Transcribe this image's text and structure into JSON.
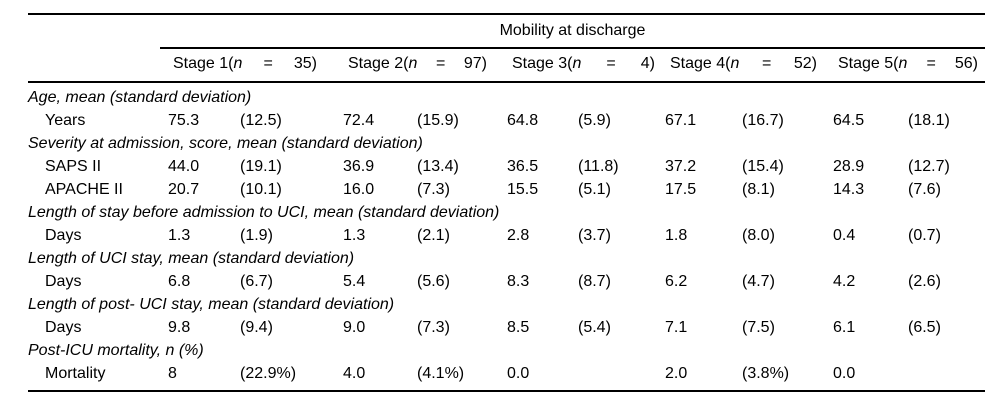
{
  "table": {
    "title": "Mobility at discharge",
    "n_symbol": "n",
    "column_groups": [
      {
        "stage": "Stage 1(",
        "eq": "=",
        "count": "35)"
      },
      {
        "stage": "Stage 2(",
        "eq": "=",
        "count": "97)"
      },
      {
        "stage": "Stage 3(",
        "eq": "=",
        "count": "4)"
      },
      {
        "stage": "Stage 4(",
        "eq": "=",
        "count": "52)"
      },
      {
        "stage": "Stage 5(",
        "eq": "=",
        "count": "56)"
      }
    ],
    "rows": [
      {
        "type": "section",
        "label": "Age, mean (standard deviation)"
      },
      {
        "type": "item",
        "label": "Years",
        "values": [
          "75.3",
          "(12.5)",
          "72.4",
          "(15.9)",
          "64.8",
          "(5.9)",
          "67.1",
          "(16.7)",
          "64.5",
          "(18.1)"
        ]
      },
      {
        "type": "section",
        "label": "Severity at admission, score, mean (standard deviation)"
      },
      {
        "type": "item",
        "label": "SAPS II",
        "values": [
          "44.0",
          "(19.1)",
          "36.9",
          "(13.4)",
          "36.5",
          "(11.8)",
          "37.2",
          "(15.4)",
          "28.9",
          "(12.7)"
        ]
      },
      {
        "type": "item",
        "label": "APACHE II",
        "values": [
          "20.7",
          "(10.1)",
          "16.0",
          "(7.3)",
          "15.5",
          "(5.1)",
          "17.5",
          "(8.1)",
          "14.3",
          "(7.6)"
        ]
      },
      {
        "type": "section",
        "label": "Length of stay before admission to UCI, mean (standard deviation)"
      },
      {
        "type": "item",
        "label": "Days",
        "values": [
          "1.3",
          "(1.9)",
          "1.3",
          "(2.1)",
          "2.8",
          "(3.7)",
          "1.8",
          "(8.0)",
          "0.4",
          "(0.7)"
        ]
      },
      {
        "type": "section",
        "label": "Length of UCI stay, mean (standard deviation)"
      },
      {
        "type": "item",
        "label": "Days",
        "values": [
          "6.8",
          "(6.7)",
          "5.4",
          "(5.6)",
          "8.3",
          "(8.7)",
          "6.2",
          "(4.7)",
          "4.2",
          "(2.6)"
        ]
      },
      {
        "type": "section",
        "label": "Length of post- UCI stay, mean (standard deviation)"
      },
      {
        "type": "item",
        "label": "Days",
        "values": [
          "9.8",
          "(9.4)",
          "9.0",
          "(7.3)",
          "8.5",
          "(5.4)",
          "7.1",
          "(7.5)",
          "6.1",
          "(6.5)"
        ]
      },
      {
        "type": "section",
        "label": "Post-ICU mortality, n (%)"
      },
      {
        "type": "item",
        "label": "Mortality",
        "values": [
          "8",
          "(22.9%)",
          "4.0",
          "(4.1%)",
          "0.0",
          "",
          "2.0",
          "(3.8%)",
          "0.0",
          ""
        ]
      }
    ]
  }
}
